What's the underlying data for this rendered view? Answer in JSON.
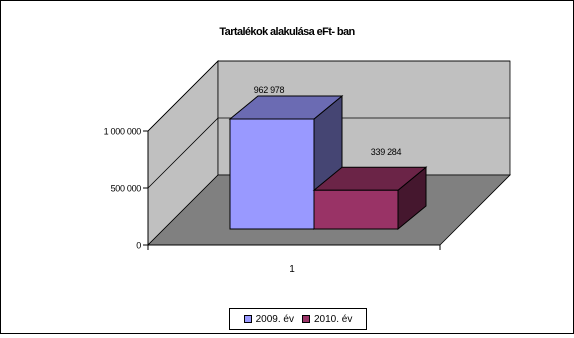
{
  "chart_data": {
    "type": "bar",
    "title": "Tartalékok alakulása eFt- ban",
    "categories": [
      "1"
    ],
    "series": [
      {
        "name": "2009. év",
        "values": [
          962978
        ],
        "label": "962 978",
        "color": "#9999ff"
      },
      {
        "name": "2010. év",
        "values": [
          339284
        ],
        "label": "339 284",
        "color": "#993366"
      }
    ],
    "y_ticks": [
      {
        "value": 0,
        "label": "0"
      },
      {
        "value": 500000,
        "label": "500 000"
      },
      {
        "value": 1000000,
        "label": "1 000 000"
      }
    ],
    "ylim": [
      0,
      1000000
    ],
    "grid": true,
    "three_d": true,
    "legend_position": "bottom",
    "colors": {
      "wall": "#c0c0c0",
      "floor": "#808080"
    }
  }
}
